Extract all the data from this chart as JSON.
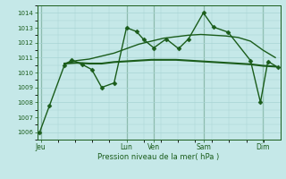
{
  "xlabel": "Pression niveau de la mer( hPa )",
  "bg_color": "#c5e8e8",
  "grid_color": "#a8d4d4",
  "line_color": "#1a5c1a",
  "ylim": [
    1005.5,
    1014.5
  ],
  "yticks": [
    1006,
    1007,
    1008,
    1009,
    1010,
    1011,
    1012,
    1013,
    1014
  ],
  "xlim": [
    -0.1,
    9.7
  ],
  "day_labels": [
    "Jeu",
    "Lun",
    "Ven",
    "Sam",
    "Dim"
  ],
  "day_positions": [
    0.05,
    3.5,
    4.6,
    6.6,
    9.0
  ],
  "vline_positions": [
    0.05,
    3.5,
    4.6,
    6.6,
    9.0
  ],
  "series": [
    {
      "x": [
        0.0,
        0.4,
        1.0,
        1.3,
        1.7,
        2.1,
        2.5,
        3.0,
        3.5,
        3.9,
        4.2,
        4.6,
        5.1,
        5.6,
        6.0,
        6.6,
        7.0,
        7.6,
        8.5,
        8.9,
        9.2,
        9.6
      ],
      "y": [
        1006.0,
        1007.8,
        1010.5,
        1010.85,
        1010.55,
        1010.2,
        1009.0,
        1009.3,
        1013.0,
        1012.75,
        1012.2,
        1011.65,
        1012.25,
        1011.6,
        1012.25,
        1014.0,
        1013.05,
        1012.7,
        1010.8,
        1008.0,
        1010.75,
        1010.35
      ],
      "marker": "D",
      "markersize": 2.5,
      "linewidth": 1.0
    },
    {
      "x": [
        1.0,
        1.5,
        2.0,
        2.5,
        3.0,
        3.5,
        4.0,
        4.5,
        5.0,
        5.5,
        6.0,
        6.5,
        7.0,
        7.5,
        8.0,
        8.5,
        9.0,
        9.5
      ],
      "y": [
        1010.6,
        1010.65,
        1010.6,
        1010.6,
        1010.7,
        1010.75,
        1010.8,
        1010.85,
        1010.85,
        1010.85,
        1010.8,
        1010.75,
        1010.7,
        1010.65,
        1010.6,
        1010.55,
        1010.45,
        1010.4
      ],
      "marker": null,
      "markersize": 0,
      "linewidth": 1.5
    },
    {
      "x": [
        1.0,
        1.5,
        2.0,
        2.5,
        3.0,
        3.5,
        4.0,
        4.5,
        5.0,
        5.5,
        6.0,
        6.5,
        7.0,
        7.5,
        8.0,
        8.5,
        9.0,
        9.5
      ],
      "y": [
        1010.6,
        1010.8,
        1010.9,
        1011.1,
        1011.3,
        1011.6,
        1011.9,
        1012.1,
        1012.3,
        1012.4,
        1012.5,
        1012.55,
        1012.5,
        1012.45,
        1012.35,
        1012.1,
        1011.5,
        1011.0
      ],
      "marker": null,
      "markersize": 0,
      "linewidth": 1.0
    }
  ]
}
